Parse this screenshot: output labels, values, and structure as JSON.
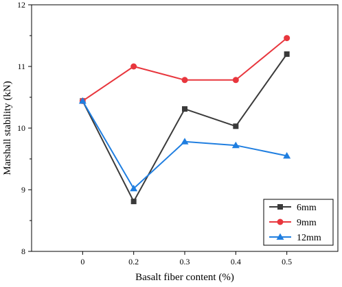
{
  "chart_data": {
    "type": "line",
    "title": "",
    "xlabel": "Basalt fiber content (%)",
    "ylabel": "Marshall stability (kN)",
    "categories": [
      "0",
      "0.2",
      "0.3",
      "0.4",
      "0.5"
    ],
    "ylim": [
      8,
      12
    ],
    "yticks": [
      "8",
      "9",
      "10",
      "11",
      "12"
    ],
    "grid": false,
    "legend_position": "bottom-right",
    "series": [
      {
        "name": "6mm",
        "values": [
          10.44,
          8.81,
          10.31,
          10.03,
          11.2
        ],
        "color": "#3a3a3a",
        "marker": "square"
      },
      {
        "name": "9mm",
        "values": [
          10.44,
          11.0,
          10.78,
          10.78,
          11.46
        ],
        "color": "#e8363d",
        "marker": "circle"
      },
      {
        "name": "12mm",
        "values": [
          10.44,
          9.02,
          9.78,
          9.72,
          9.55
        ],
        "color": "#1f7ee0",
        "marker": "triangle"
      }
    ]
  }
}
